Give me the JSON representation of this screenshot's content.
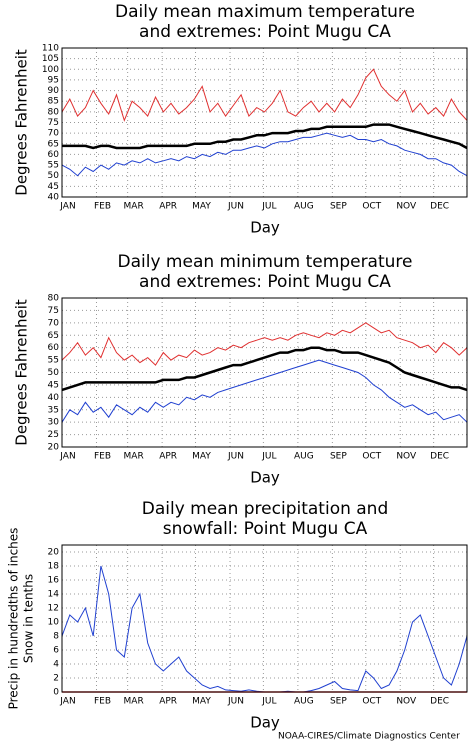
{
  "chart_data": [
    {
      "type": "line",
      "title": [
        "Daily mean maximum temperature",
        "and extremes: Point Mugu CA"
      ],
      "ylabel": [
        "Degrees Fahrenheit"
      ],
      "xlabel": "Day",
      "grid": true,
      "x": [
        1,
        8,
        15,
        22,
        29,
        36,
        43,
        50,
        57,
        64,
        71,
        78,
        85,
        92,
        99,
        106,
        113,
        120,
        127,
        134,
        141,
        148,
        155,
        162,
        169,
        176,
        183,
        190,
        197,
        204,
        211,
        218,
        225,
        232,
        239,
        246,
        253,
        260,
        267,
        274,
        281,
        288,
        295,
        302,
        309,
        316,
        323,
        330,
        337,
        344,
        351,
        358,
        365
      ],
      "xlim": [
        1,
        365
      ],
      "xticks": [
        {
          "value": 1,
          "label": "JAN"
        },
        {
          "value": 32,
          "label": "FEB"
        },
        {
          "value": 60,
          "label": "MAR"
        },
        {
          "value": 91,
          "label": "APR"
        },
        {
          "value": 121,
          "label": "MAY"
        },
        {
          "value": 152,
          "label": "JUN"
        },
        {
          "value": 182,
          "label": "JUL"
        },
        {
          "value": 213,
          "label": "AUG"
        },
        {
          "value": 244,
          "label": "SEP"
        },
        {
          "value": 274,
          "label": "OCT"
        },
        {
          "value": 305,
          "label": "NOV"
        },
        {
          "value": 335,
          "label": "DEC"
        }
      ],
      "ylim": [
        40,
        110
      ],
      "yticks": [
        40,
        45,
        50,
        55,
        60,
        65,
        70,
        75,
        80,
        85,
        90,
        95,
        100,
        105,
        110
      ],
      "series": [
        {
          "color": "#e03030",
          "width": 1,
          "values": [
            80,
            86,
            78,
            82,
            90,
            84,
            79,
            88,
            76,
            85,
            82,
            78,
            87,
            80,
            84,
            79,
            82,
            86,
            92,
            80,
            84,
            78,
            83,
            88,
            78,
            82,
            80,
            84,
            90,
            80,
            78,
            82,
            85,
            80,
            84,
            80,
            86,
            82,
            88,
            96,
            100,
            92,
            88,
            85,
            90,
            80,
            84,
            79,
            82,
            78,
            86,
            80,
            76
          ]
        },
        {
          "color": "#000000",
          "width": 2.5,
          "values": [
            64,
            64,
            64,
            64,
            63,
            64,
            64,
            63,
            63,
            63,
            63,
            64,
            64,
            64,
            64,
            64,
            64,
            65,
            65,
            65,
            66,
            66,
            67,
            67,
            68,
            69,
            69,
            70,
            70,
            70,
            71,
            71,
            72,
            72,
            73,
            73,
            73,
            73,
            73,
            73,
            74,
            74,
            74,
            73,
            72,
            71,
            70,
            69,
            68,
            67,
            66,
            65,
            63
          ]
        },
        {
          "color": "#2040d0",
          "width": 1,
          "values": [
            55,
            53,
            50,
            54,
            52,
            55,
            53,
            56,
            55,
            57,
            56,
            58,
            56,
            57,
            58,
            57,
            59,
            58,
            60,
            59,
            61,
            60,
            62,
            62,
            63,
            64,
            63,
            65,
            66,
            66,
            67,
            68,
            68,
            69,
            70,
            69,
            68,
            69,
            67,
            67,
            66,
            67,
            65,
            64,
            62,
            61,
            60,
            58,
            58,
            56,
            55,
            52,
            50
          ]
        }
      ]
    },
    {
      "type": "line",
      "title": [
        "Daily mean minimum temperature",
        "and extremes: Point Mugu CA"
      ],
      "ylabel": [
        "Degrees Fahrenheit"
      ],
      "xlabel": "Day",
      "grid": true,
      "x": [
        1,
        8,
        15,
        22,
        29,
        36,
        43,
        50,
        57,
        64,
        71,
        78,
        85,
        92,
        99,
        106,
        113,
        120,
        127,
        134,
        141,
        148,
        155,
        162,
        169,
        176,
        183,
        190,
        197,
        204,
        211,
        218,
        225,
        232,
        239,
        246,
        253,
        260,
        267,
        274,
        281,
        288,
        295,
        302,
        309,
        316,
        323,
        330,
        337,
        344,
        351,
        358,
        365
      ],
      "xlim": [
        1,
        365
      ],
      "xticks": [
        {
          "value": 1,
          "label": "JAN"
        },
        {
          "value": 32,
          "label": "FEB"
        },
        {
          "value": 60,
          "label": "MAR"
        },
        {
          "value": 91,
          "label": "APR"
        },
        {
          "value": 121,
          "label": "MAY"
        },
        {
          "value": 152,
          "label": "JUN"
        },
        {
          "value": 182,
          "label": "JUL"
        },
        {
          "value": 213,
          "label": "AUG"
        },
        {
          "value": 244,
          "label": "SEP"
        },
        {
          "value": 274,
          "label": "OCT"
        },
        {
          "value": 305,
          "label": "NOV"
        },
        {
          "value": 335,
          "label": "DEC"
        }
      ],
      "ylim": [
        20,
        80
      ],
      "yticks": [
        20,
        25,
        30,
        35,
        40,
        45,
        50,
        55,
        60,
        65,
        70,
        75,
        80
      ],
      "series": [
        {
          "color": "#e03030",
          "width": 1,
          "values": [
            55,
            58,
            62,
            57,
            60,
            56,
            64,
            58,
            55,
            57,
            54,
            56,
            53,
            58,
            55,
            57,
            56,
            59,
            57,
            58,
            60,
            59,
            61,
            60,
            62,
            63,
            64,
            63,
            64,
            63,
            65,
            66,
            65,
            64,
            66,
            65,
            67,
            66,
            68,
            70,
            68,
            66,
            67,
            64,
            63,
            62,
            60,
            61,
            58,
            62,
            60,
            57,
            60
          ]
        },
        {
          "color": "#000000",
          "width": 2.5,
          "values": [
            43,
            44,
            45,
            46,
            46,
            46,
            46,
            46,
            46,
            46,
            46,
            46,
            46,
            47,
            47,
            47,
            48,
            48,
            49,
            50,
            51,
            52,
            53,
            53,
            54,
            55,
            56,
            57,
            58,
            58,
            59,
            59,
            60,
            60,
            59,
            59,
            58,
            58,
            58,
            57,
            56,
            55,
            54,
            52,
            50,
            49,
            48,
            47,
            46,
            45,
            44,
            44,
            43
          ]
        },
        {
          "color": "#2040d0",
          "width": 1,
          "values": [
            30,
            35,
            33,
            38,
            34,
            36,
            32,
            37,
            35,
            33,
            36,
            34,
            38,
            36,
            38,
            37,
            40,
            39,
            41,
            40,
            42,
            43,
            44,
            45,
            46,
            47,
            48,
            49,
            50,
            51,
            52,
            53,
            54,
            55,
            54,
            53,
            52,
            51,
            50,
            48,
            45,
            43,
            40,
            38,
            36,
            37,
            35,
            33,
            34,
            31,
            32,
            33,
            30
          ]
        }
      ]
    },
    {
      "type": "line",
      "title": [
        "Daily mean precipitation and",
        "snowfall: Point Mugu CA"
      ],
      "ylabel": [
        "Precip in hundredths of inches",
        "Snow in tenths"
      ],
      "xlabel": "Day",
      "grid": true,
      "x": [
        1,
        8,
        15,
        22,
        29,
        36,
        43,
        50,
        57,
        64,
        71,
        78,
        85,
        92,
        99,
        106,
        113,
        120,
        127,
        134,
        141,
        148,
        155,
        162,
        169,
        176,
        183,
        190,
        197,
        204,
        211,
        218,
        225,
        232,
        239,
        246,
        253,
        260,
        267,
        274,
        281,
        288,
        295,
        302,
        309,
        316,
        323,
        330,
        337,
        344,
        351,
        358,
        365
      ],
      "xlim": [
        1,
        365
      ],
      "xticks": [
        {
          "value": 1,
          "label": "JAN"
        },
        {
          "value": 32,
          "label": "FEB"
        },
        {
          "value": 60,
          "label": "MAR"
        },
        {
          "value": 91,
          "label": "APR"
        },
        {
          "value": 121,
          "label": "MAY"
        },
        {
          "value": 152,
          "label": "JUN"
        },
        {
          "value": 182,
          "label": "JUL"
        },
        {
          "value": 213,
          "label": "AUG"
        },
        {
          "value": 244,
          "label": "SEP"
        },
        {
          "value": 274,
          "label": "OCT"
        },
        {
          "value": 305,
          "label": "NOV"
        },
        {
          "value": 335,
          "label": "DEC"
        }
      ],
      "ylim": [
        0,
        21
      ],
      "yticks": [
        0,
        2,
        4,
        6,
        8,
        10,
        12,
        14,
        16,
        18,
        20
      ],
      "series": [
        {
          "color": "#2040d0",
          "width": 1,
          "values": [
            8,
            11,
            10,
            12,
            8,
            18,
            14,
            6,
            5,
            12,
            14,
            7,
            4,
            3,
            4,
            5,
            3,
            2,
            1,
            0.5,
            0.8,
            0.3,
            0.2,
            0.1,
            0.3,
            0.1,
            0,
            0,
            0,
            0.1,
            0,
            0,
            0.2,
            0.5,
            1,
            1.5,
            0.5,
            0.3,
            0.2,
            3,
            2,
            0.5,
            1,
            3,
            6,
            10,
            11,
            8,
            5,
            2,
            1,
            4,
            8
          ]
        },
        {
          "color": "#e03030",
          "width": 1.5,
          "values": [
            0,
            0,
            0,
            0,
            0,
            0,
            0,
            0,
            0,
            0,
            0,
            0,
            0,
            0,
            0,
            0,
            0,
            0,
            0,
            0,
            0,
            0,
            0,
            0,
            0,
            0,
            0,
            0,
            0,
            0,
            0,
            0,
            0,
            0,
            0,
            0,
            0,
            0,
            0,
            0,
            0,
            0,
            0,
            0,
            0,
            0,
            0,
            0,
            0,
            0,
            0,
            0,
            0
          ]
        }
      ]
    }
  ],
  "footer": "NOAA-CIRES/Climate Diagnostics Center"
}
